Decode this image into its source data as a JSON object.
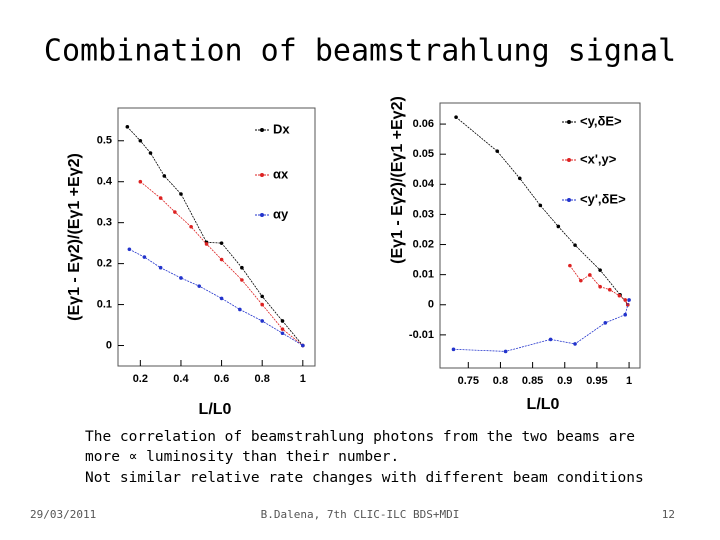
{
  "title": "Combination of beamstrahlung signal",
  "body": [
    "The correlation of beamstrahlung photons from the two beams are",
    "more ∝ luminosity than their number.",
    "Not similar relative rate changes with different beam conditions"
  ],
  "footer": {
    "date": "29/03/2011",
    "author": "B.Dalena, 7th CLIC-ILC BDS+MDI",
    "page": "12"
  },
  "chart_data": [
    {
      "type": "line",
      "x_label": "L/L0",
      "y_label": "(Eγ1 - Eγ2)/(Eγ1 +Eγ2)",
      "xlim": [
        0.09,
        1.06
      ],
      "ylim": [
        -0.05,
        0.58
      ],
      "xticks": [
        0.2,
        0.4,
        0.6,
        0.8,
        1
      ],
      "yticks": [
        0,
        0.1,
        0.2,
        0.3,
        0.4,
        0.5
      ],
      "series": [
        {
          "name": "Dx",
          "color": "#000000",
          "x": [
            0.136,
            0.2,
            0.25,
            0.318,
            0.4,
            0.526,
            0.6,
            0.7,
            0.8,
            0.9,
            1.0
          ],
          "values": [
            0.534,
            0.5,
            0.47,
            0.414,
            0.37,
            0.252,
            0.25,
            0.19,
            0.12,
            0.06,
            0.0
          ]
        },
        {
          "name": "αx",
          "color": "#dd2222",
          "x": [
            0.2,
            0.3,
            0.37,
            0.45,
            0.526,
            0.6,
            0.7,
            0.8,
            0.9,
            1.0
          ],
          "values": [
            0.4,
            0.36,
            0.326,
            0.29,
            0.248,
            0.21,
            0.16,
            0.1,
            0.04,
            0.0
          ]
        },
        {
          "name": "αy",
          "color": "#2233cc",
          "x": [
            0.146,
            0.22,
            0.3,
            0.4,
            0.49,
            0.6,
            0.69,
            0.8,
            0.9,
            1.0
          ],
          "values": [
            0.235,
            0.216,
            0.19,
            0.165,
            0.145,
            0.115,
            0.088,
            0.06,
            0.03,
            0.0
          ]
        }
      ]
    },
    {
      "type": "line",
      "x_label": "L/L0",
      "y_label": "(Eγ1 - Eγ2)/(Eγ1 +Eγ2)",
      "xlim": [
        0.706,
        1.017
      ],
      "ylim": [
        -0.021,
        0.067
      ],
      "xticks": [
        0.75,
        0.8,
        0.85,
        0.9,
        0.95,
        1
      ],
      "yticks": [
        -0.01,
        0,
        0.01,
        0.02,
        0.03,
        0.04,
        0.05,
        0.06
      ],
      "series": [
        {
          "name": "<y,δE>",
          "color": "#000000",
          "x": [
            0.731,
            0.795,
            0.83,
            0.862,
            0.89,
            0.916,
            0.955,
            0.986,
            0.998
          ],
          "values": [
            0.0623,
            0.051,
            0.042,
            0.033,
            0.026,
            0.0198,
            0.0115,
            0.0033,
            0.0
          ]
        },
        {
          "name": "<x',y>",
          "color": "#dd2222",
          "x": [
            0.908,
            0.925,
            0.939,
            0.955,
            0.97,
            0.985,
            0.994,
            0.998
          ],
          "values": [
            0.013,
            0.008,
            0.0099,
            0.006,
            0.005,
            0.003,
            0.0016,
            0.0
          ]
        },
        {
          "name": "<y',δE>",
          "color": "#2233cc",
          "x": [
            0.727,
            0.808,
            0.878,
            0.916,
            0.963,
            0.994,
            1.0
          ],
          "values": [
            -0.0148,
            -0.0155,
            -0.0115,
            -0.013,
            -0.006,
            -0.0033,
            0.0016
          ]
        }
      ]
    }
  ]
}
